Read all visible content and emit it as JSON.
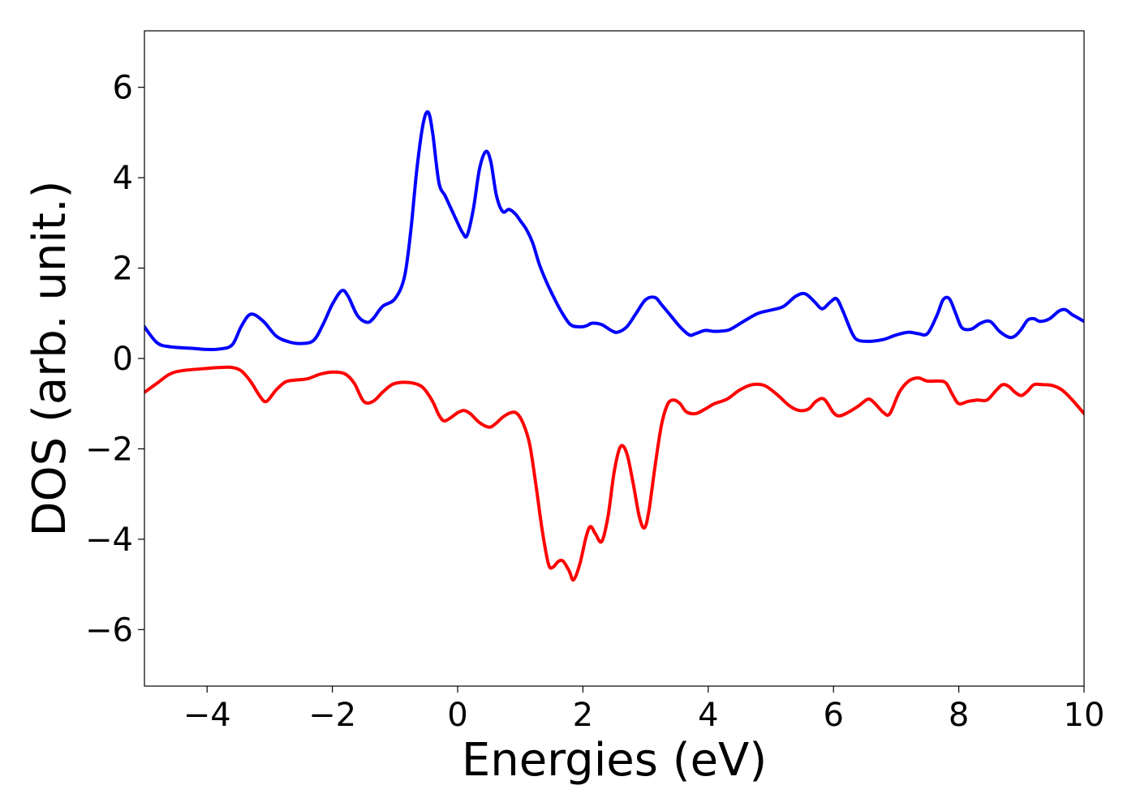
{
  "chart_data": {
    "type": "line",
    "title": "",
    "xlabel": "Energies (eV)",
    "ylabel": "DOS (arb. unit.)",
    "xlim": [
      -5,
      10
    ],
    "ylim": [
      -7.25,
      7.25
    ],
    "x_ticks": [
      -4,
      -2,
      0,
      2,
      4,
      6,
      8,
      10
    ],
    "y_ticks": [
      -6,
      -4,
      -2,
      0,
      2,
      4,
      6
    ],
    "x_tick_labels": [
      "−4",
      "−2",
      "0",
      "2",
      "4",
      "6",
      "8",
      "10"
    ],
    "y_tick_labels": [
      "−6",
      "−4",
      "−2",
      "0",
      "2",
      "4",
      "6"
    ],
    "grid": false,
    "legend": "none",
    "colors": {
      "series_up": "#0000ff",
      "series_down": "#ff0000",
      "axes": "#000000"
    },
    "series": [
      {
        "color": "#0000ff",
        "x": [
          -5.0,
          -4.8,
          -4.6,
          -4.2,
          -4.0,
          -3.8,
          -3.6,
          -3.45,
          -3.3,
          -3.1,
          -2.9,
          -2.7,
          -2.5,
          -2.3,
          -2.15,
          -2.0,
          -1.85,
          -1.75,
          -1.6,
          -1.45,
          -1.35,
          -1.2,
          -1.0,
          -0.85,
          -0.75,
          -0.65,
          -0.55,
          -0.47,
          -0.4,
          -0.3,
          -0.2,
          -0.1,
          0.0,
          0.08,
          0.15,
          0.25,
          0.35,
          0.45,
          0.53,
          0.62,
          0.72,
          0.82,
          0.92,
          1.0,
          1.1,
          1.2,
          1.3,
          1.4,
          1.5,
          1.65,
          1.8,
          1.95,
          2.05,
          2.15,
          2.3,
          2.45,
          2.55,
          2.7,
          2.85,
          3.0,
          3.15,
          3.25,
          3.4,
          3.55,
          3.7,
          3.8,
          3.95,
          4.1,
          4.3,
          4.4,
          4.6,
          4.8,
          5.0,
          5.2,
          5.4,
          5.55,
          5.7,
          5.82,
          5.95,
          6.05,
          6.15,
          6.3,
          6.4,
          6.6,
          6.8,
          7.0,
          7.2,
          7.35,
          7.5,
          7.65,
          7.75,
          7.85,
          7.95,
          8.05,
          8.2,
          8.35,
          8.5,
          8.65,
          8.8,
          8.9,
          9.0,
          9.1,
          9.2,
          9.3,
          9.45,
          9.6,
          9.7,
          9.8,
          9.9,
          10.0
        ],
        "y": [
          0.7,
          0.35,
          0.26,
          0.22,
          0.2,
          0.21,
          0.3,
          0.72,
          0.98,
          0.82,
          0.5,
          0.37,
          0.33,
          0.4,
          0.75,
          1.2,
          1.5,
          1.38,
          0.95,
          0.8,
          0.88,
          1.15,
          1.32,
          1.8,
          2.8,
          4.2,
          5.2,
          5.45,
          5.0,
          3.9,
          3.6,
          3.3,
          3.0,
          2.78,
          2.72,
          3.3,
          4.2,
          4.58,
          4.35,
          3.6,
          3.25,
          3.3,
          3.2,
          3.05,
          2.85,
          2.55,
          2.1,
          1.75,
          1.45,
          1.05,
          0.75,
          0.7,
          0.72,
          0.78,
          0.75,
          0.62,
          0.58,
          0.7,
          1.0,
          1.3,
          1.35,
          1.2,
          0.95,
          0.7,
          0.52,
          0.55,
          0.62,
          0.6,
          0.62,
          0.68,
          0.85,
          1.0,
          1.07,
          1.15,
          1.38,
          1.43,
          1.25,
          1.1,
          1.25,
          1.32,
          1.05,
          0.55,
          0.4,
          0.38,
          0.42,
          0.52,
          0.58,
          0.55,
          0.55,
          0.95,
          1.3,
          1.32,
          1.0,
          0.68,
          0.65,
          0.78,
          0.82,
          0.6,
          0.47,
          0.5,
          0.65,
          0.85,
          0.88,
          0.82,
          0.88,
          1.05,
          1.08,
          0.98,
          0.9,
          0.82
        ]
      },
      {
        "color": "#ff0000",
        "x": [
          -5.0,
          -4.8,
          -4.6,
          -4.4,
          -4.0,
          -3.8,
          -3.6,
          -3.45,
          -3.3,
          -3.15,
          -3.05,
          -2.9,
          -2.75,
          -2.6,
          -2.4,
          -2.2,
          -2.0,
          -1.8,
          -1.65,
          -1.5,
          -1.35,
          -1.2,
          -1.05,
          -0.9,
          -0.7,
          -0.55,
          -0.4,
          -0.3,
          -0.22,
          -0.12,
          0.0,
          0.1,
          0.2,
          0.35,
          0.5,
          0.6,
          0.72,
          0.85,
          0.95,
          1.05,
          1.15,
          1.25,
          1.35,
          1.45,
          1.52,
          1.6,
          1.68,
          1.78,
          1.85,
          1.95,
          2.05,
          2.12,
          2.2,
          2.3,
          2.4,
          2.5,
          2.6,
          2.7,
          2.8,
          2.9,
          2.98,
          3.05,
          3.15,
          3.25,
          3.35,
          3.45,
          3.55,
          3.65,
          3.8,
          3.95,
          4.1,
          4.3,
          4.5,
          4.7,
          4.9,
          5.1,
          5.3,
          5.45,
          5.6,
          5.72,
          5.85,
          6.0,
          6.1,
          6.25,
          6.4,
          6.55,
          6.65,
          6.8,
          6.9,
          7.05,
          7.2,
          7.35,
          7.5,
          7.7,
          7.8,
          7.9,
          8.0,
          8.15,
          8.3,
          8.45,
          8.6,
          8.7,
          8.8,
          8.9,
          9.0,
          9.1,
          9.2,
          9.35,
          9.5,
          9.65,
          9.8,
          10.0
        ],
        "y": [
          -0.75,
          -0.55,
          -0.35,
          -0.27,
          -0.22,
          -0.2,
          -0.2,
          -0.28,
          -0.52,
          -0.85,
          -0.95,
          -0.7,
          -0.52,
          -0.48,
          -0.45,
          -0.35,
          -0.3,
          -0.34,
          -0.55,
          -0.95,
          -0.95,
          -0.75,
          -0.58,
          -0.53,
          -0.55,
          -0.65,
          -0.95,
          -1.25,
          -1.38,
          -1.32,
          -1.2,
          -1.15,
          -1.22,
          -1.42,
          -1.52,
          -1.45,
          -1.3,
          -1.2,
          -1.22,
          -1.45,
          -1.9,
          -2.8,
          -3.8,
          -4.55,
          -4.62,
          -4.5,
          -4.48,
          -4.7,
          -4.9,
          -4.55,
          -3.95,
          -3.72,
          -3.88,
          -4.05,
          -3.5,
          -2.5,
          -1.95,
          -2.1,
          -2.75,
          -3.5,
          -3.75,
          -3.4,
          -2.4,
          -1.5,
          -1.02,
          -0.92,
          -1.0,
          -1.18,
          -1.22,
          -1.12,
          -1.0,
          -0.9,
          -0.7,
          -0.58,
          -0.6,
          -0.8,
          -1.05,
          -1.15,
          -1.12,
          -0.95,
          -0.9,
          -1.2,
          -1.27,
          -1.18,
          -1.05,
          -0.9,
          -0.98,
          -1.2,
          -1.22,
          -0.75,
          -0.5,
          -0.43,
          -0.5,
          -0.5,
          -0.55,
          -0.8,
          -1.0,
          -0.95,
          -0.92,
          -0.92,
          -0.7,
          -0.58,
          -0.62,
          -0.75,
          -0.82,
          -0.72,
          -0.58,
          -0.58,
          -0.6,
          -0.7,
          -0.9,
          -1.22
        ]
      }
    ]
  }
}
